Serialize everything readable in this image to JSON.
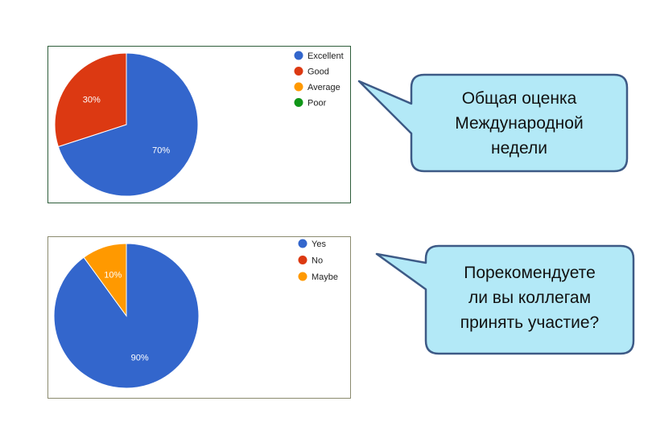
{
  "chart_data": [
    {
      "type": "pie",
      "categories": [
        "Excellent",
        "Good",
        "Average",
        "Poor"
      ],
      "values": [
        70,
        30,
        0,
        0
      ],
      "slice_labels": [
        "70%",
        "30%",
        "",
        ""
      ],
      "colors": [
        "#3366cc",
        "#dc3912",
        "#ff9900",
        "#109618"
      ],
      "legend_position": "right"
    },
    {
      "type": "pie",
      "categories": [
        "Yes",
        "No",
        "Maybe"
      ],
      "values": [
        90,
        0,
        10
      ],
      "slice_labels": [
        "90%",
        "",
        "10%"
      ],
      "colors": [
        "#3366cc",
        "#dc3912",
        "#ff9900"
      ],
      "legend_position": "right"
    }
  ],
  "callouts": {
    "first": {
      "line1": "Общая оценка",
      "line2": "Международной",
      "line3": "недели"
    },
    "second": {
      "line1": "Порекомендуете",
      "line2": "ли вы коллегам",
      "line3": "принять участие?"
    }
  },
  "style": {
    "callout_fill": "#b3e9f7",
    "callout_border": "#3d5a86"
  }
}
